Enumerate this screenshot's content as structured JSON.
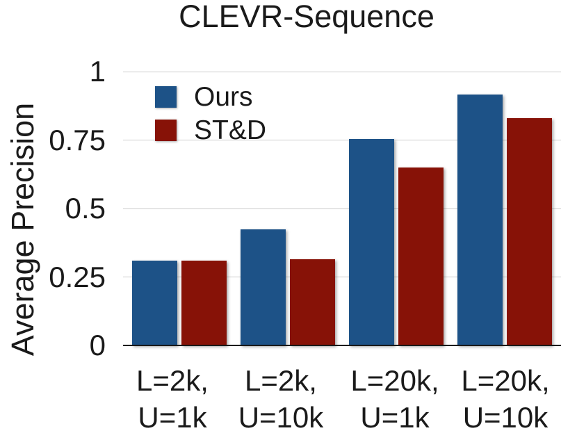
{
  "chart_data": {
    "type": "bar",
    "title": "CLEVR-Sequence",
    "ylabel": "Average Precision",
    "xlabel": "",
    "categories": [
      {
        "line1": "L=2k,",
        "line2": "U=1k"
      },
      {
        "line1": "L=2k,",
        "line2": "U=10k"
      },
      {
        "line1": "L=20k,",
        "line2": "U=1k"
      },
      {
        "line1": "L=20k,",
        "line2": "U=10k"
      }
    ],
    "series": [
      {
        "name": "Ours",
        "color": "#1D5287",
        "values": [
          0.31,
          0.425,
          0.755,
          0.915
        ]
      },
      {
        "name": "ST&D",
        "color": "#871207",
        "values": [
          0.31,
          0.315,
          0.65,
          0.83
        ]
      }
    ],
    "ylim": [
      0,
      1
    ],
    "yticks": [
      0,
      0.25,
      0.5,
      0.75,
      1
    ],
    "ytick_labels": [
      "0",
      "0.25",
      "0.5",
      "0.75",
      "1"
    ],
    "grid": true,
    "legend_position": "top-left",
    "colors": {
      "grid": "#cbcbcb",
      "axis": "#1a1a1a",
      "text": "#1a1a1a"
    }
  }
}
